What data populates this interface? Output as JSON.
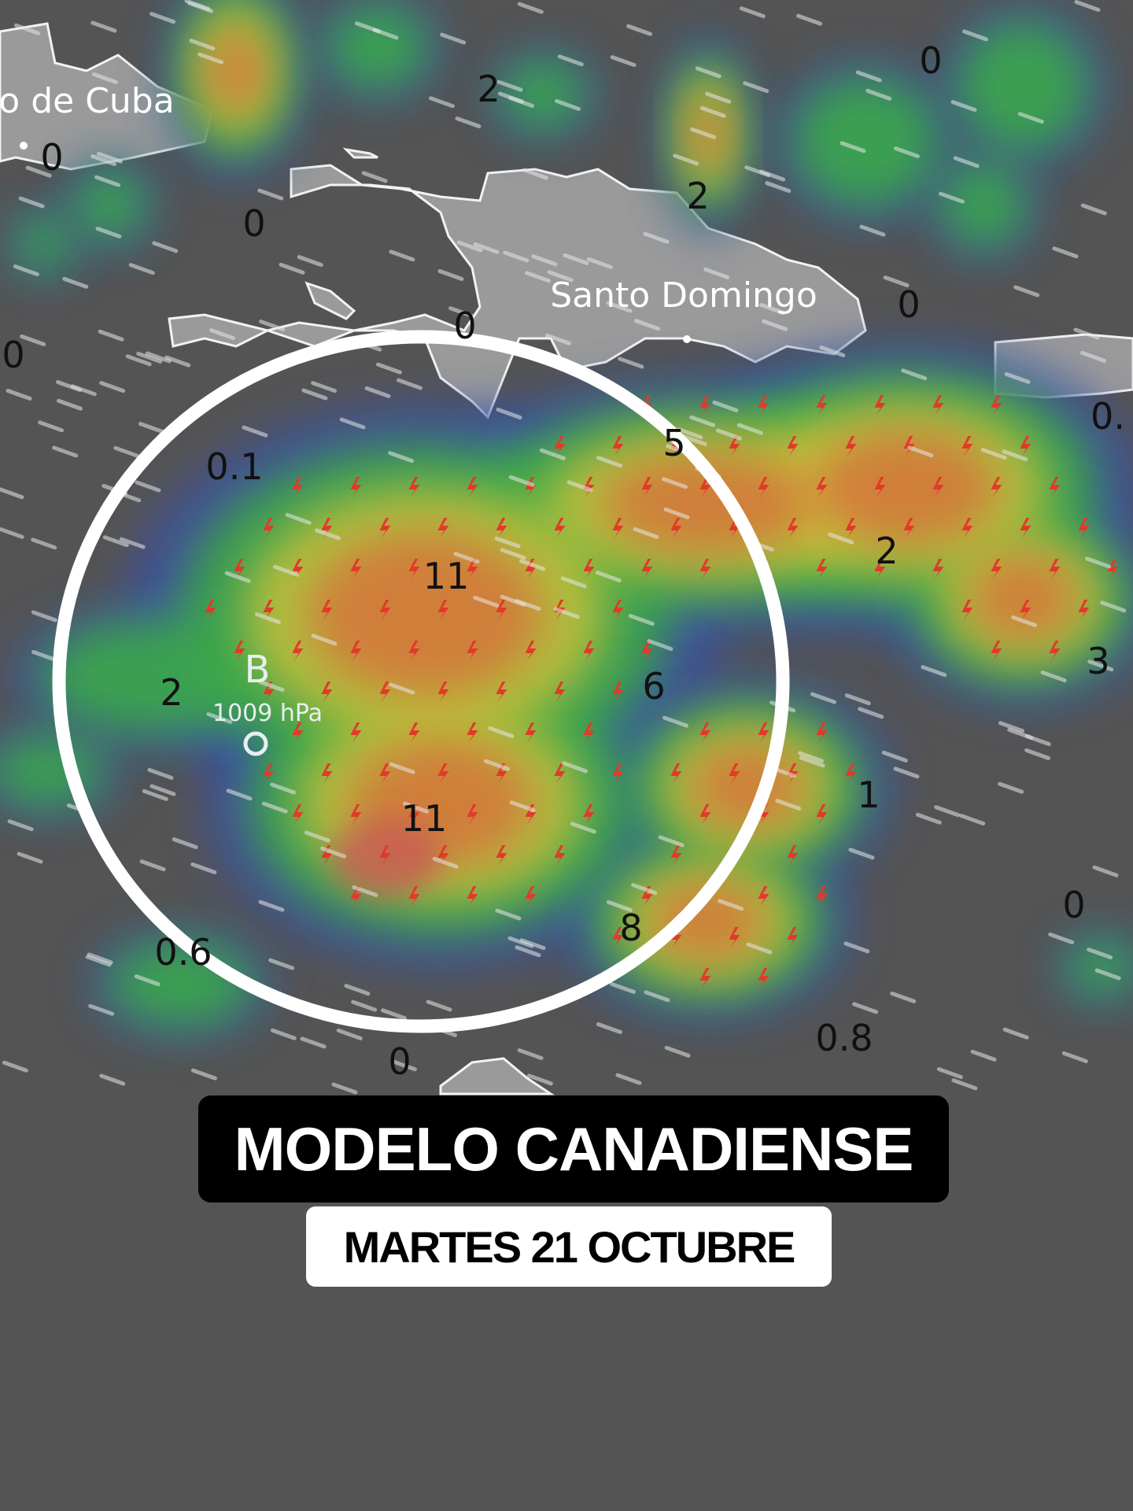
{
  "map": {
    "cities": [
      {
        "name": "o de Cuba"
      },
      {
        "name": "Santo Domingo"
      }
    ],
    "low_pressure": {
      "letter": "B",
      "pressure": "1009 hPa"
    },
    "values": [
      "0",
      "2",
      "0",
      "0",
      "2",
      "0",
      "0",
      "0",
      "0.",
      "0.1",
      "5",
      "11",
      "2",
      "3",
      "6",
      "2",
      "1",
      "11",
      "0",
      "8",
      "0.6",
      "0.8",
      "0"
    ],
    "highlight_circle": true,
    "colors": {
      "background": "#545454",
      "land": "#9a9a9a",
      "circle": "#ffffff",
      "lightning": "#e23a2a"
    }
  },
  "caption": {
    "title": "MODELO CANADIENSE",
    "date": "MARTES 21 OCTUBRE"
  }
}
